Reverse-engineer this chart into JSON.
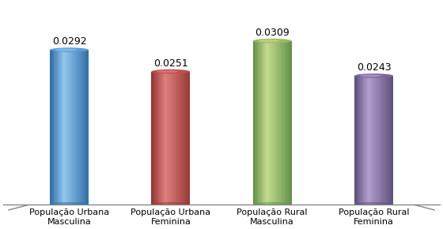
{
  "categories": [
    "População Urbana\nMasculina",
    "População Urbana\nFeminina",
    "População Rural\nMasculina",
    "População Rural\nFeminina"
  ],
  "values": [
    0.0292,
    0.0251,
    0.0309,
    0.0243
  ],
  "bar_colors_main": [
    "#5B9BD5",
    "#C0504D",
    "#9BBB59",
    "#8064A2"
  ],
  "bar_colors_dark": [
    "#2E6DA4",
    "#943634",
    "#609046",
    "#5D4E7A"
  ],
  "bar_colors_light": [
    "#92C8EF",
    "#E0807E",
    "#C4DC90",
    "#B09FCC"
  ],
  "value_labels": [
    "0.0292",
    "0.0251",
    "0.0309",
    "0.0243"
  ],
  "ylim": [
    0,
    0.038
  ],
  "background_color": "#FFFFFF",
  "label_fontsize": 8,
  "value_fontsize": 9,
  "bar_width": 0.38
}
